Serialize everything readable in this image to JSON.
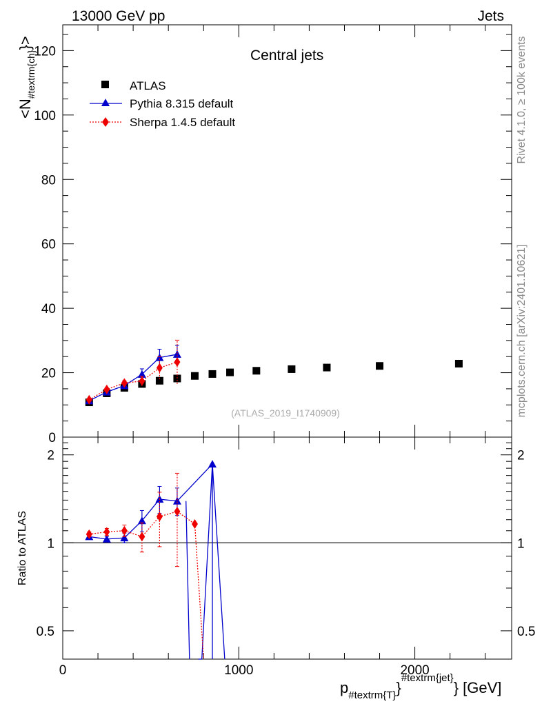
{
  "header": {
    "left": "13000 GeV pp",
    "right": "Jets",
    "side_top": "Rivet 4.1.0, ≥ 100k events",
    "side_bottom": "mcplots.cern.ch [arXiv:2401.10621]",
    "analysis": "(ATLAS_2019_I1740909)"
  },
  "chart_data": [
    {
      "type": "scatter",
      "title": "Central jets",
      "ylabel": "<N_{#textrm{ch}}>",
      "xlabel": "p_{#textrm{T}}^{#textrm{jet}} [GeV]",
      "xlim": [
        0,
        2550
      ],
      "ylim": [
        0,
        128
      ],
      "x_ticks": [
        0,
        1000,
        2000
      ],
      "x_tick_labels": [
        "0",
        "1000",
        "2000"
      ],
      "y_ticks": [
        0,
        20,
        40,
        60,
        80,
        100,
        120
      ],
      "y_tick_labels": [
        "0",
        "20",
        "40",
        "60",
        "80",
        "100",
        "120"
      ],
      "legend": [
        "ATLAS",
        "Pythia 8.315 default",
        "Sherpa 1.4.5 default"
      ],
      "series": [
        {
          "name": "ATLAS",
          "color": "#000000",
          "marker": "square",
          "x": [
            150,
            250,
            350,
            450,
            550,
            650,
            750,
            850,
            950,
            1100,
            1300,
            1500,
            1800,
            2250
          ],
          "y": [
            10.8,
            13.6,
            15.3,
            16.5,
            17.5,
            18.2,
            19.0,
            19.6,
            20.1,
            20.6,
            21.1,
            21.6,
            22.1,
            22.8
          ]
        },
        {
          "name": "Pythia 8.315 default",
          "color": "#0000cc",
          "marker": "triangle",
          "x": [
            150,
            250,
            350,
            450,
            550,
            650
          ],
          "y": [
            11.3,
            14.0,
            16.0,
            19.5,
            24.7,
            25.7
          ],
          "yerr": [
            0.4,
            0.5,
            0.7,
            1.7,
            2.6,
            2.8
          ]
        },
        {
          "name": "Sherpa 1.4.5 default",
          "color": "#ee0000",
          "marker": "diamond",
          "x": [
            150,
            250,
            350,
            450,
            550,
            650
          ],
          "y": [
            11.6,
            14.8,
            16.8,
            17.4,
            21.5,
            23.3
          ],
          "yerr": [
            0.3,
            0.5,
            0.7,
            1.5,
            3.5,
            6.8
          ]
        }
      ]
    },
    {
      "type": "line",
      "title": "",
      "ylabel": "Ratio to ATLAS",
      "xlabel": "p_{#textrm{T}}^{#textrm{jet}} [GeV]",
      "xlim": [
        0,
        2550
      ],
      "ylim": [
        0.4,
        2.3
      ],
      "reference_line": 1,
      "y_ticks": [
        0.5,
        1,
        2
      ],
      "y_tick_labels": [
        "0.5",
        "1",
        "2"
      ],
      "series": [
        {
          "name": "Pythia 8.315 default",
          "color": "#0000cc",
          "marker": "triangle",
          "x": [
            150,
            250,
            350,
            450,
            550,
            650,
            850
          ],
          "y": [
            1.05,
            1.03,
            1.04,
            1.19,
            1.41,
            1.39,
            1.86
          ],
          "yerr": [
            0.02,
            0.02,
            0.04,
            0.1,
            0.15,
            0.15,
            0
          ],
          "excursions": [
            [
              700,
              1.39,
              720,
              0.3
            ],
            [
              770,
              0.3,
              790,
              0.3
            ],
            [
              790,
              0.3,
              850,
              1.86
            ],
            [
              850,
              1.86,
              850,
              0.3
            ],
            [
              850,
              1.86,
              920,
              0.3
            ]
          ]
        },
        {
          "name": "Sherpa 1.4.5 default",
          "color": "#ee0000",
          "marker": "diamond",
          "x": [
            150,
            250,
            350,
            450,
            550,
            650,
            750
          ],
          "y": [
            1.07,
            1.09,
            1.1,
            1.05,
            1.23,
            1.28,
            1.16
          ],
          "yerr": [
            0.02,
            0.03,
            0.05,
            0.12,
            0.26,
            0.45,
            0
          ],
          "excursions": [
            [
              750,
              1.16,
              800,
              0.3
            ]
          ]
        }
      ]
    }
  ]
}
